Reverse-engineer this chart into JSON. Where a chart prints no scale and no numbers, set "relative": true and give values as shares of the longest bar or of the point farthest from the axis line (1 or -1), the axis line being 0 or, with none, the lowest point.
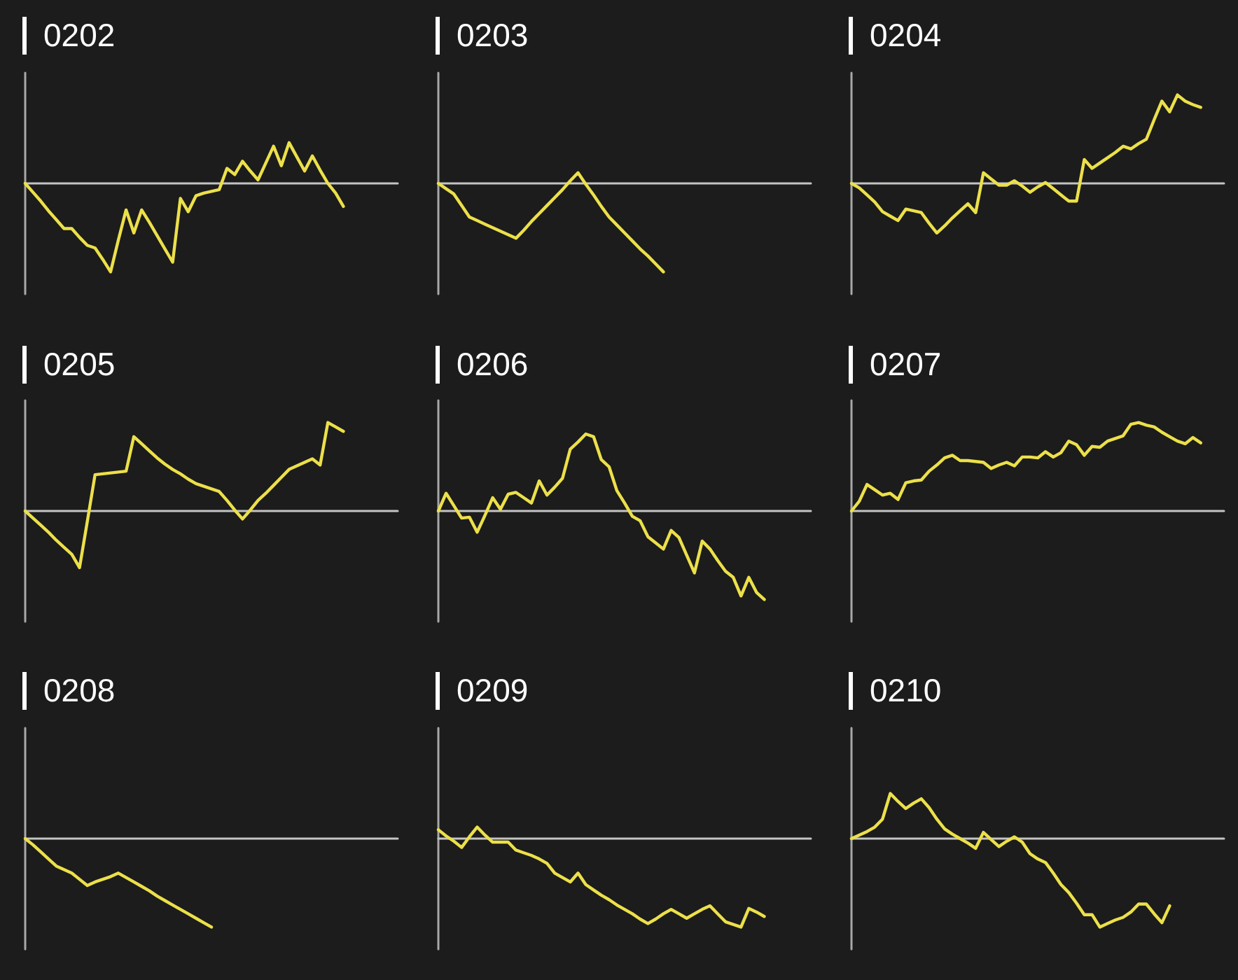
{
  "chart_data": [
    {
      "type": "line",
      "title": "0202",
      "relative": true,
      "marker": "none",
      "line_style": "solid",
      "color": "#ece04a",
      "categories": [
        null,
        null,
        null,
        null,
        null,
        null,
        null,
        null,
        null,
        null,
        null,
        null,
        null,
        null,
        null,
        null,
        null,
        null,
        null,
        null,
        null,
        null,
        null,
        null,
        null,
        null,
        null,
        null,
        null,
        null,
        null,
        null,
        null,
        null,
        null,
        null,
        null,
        null,
        null,
        null,
        null,
        null,
        null,
        null,
        null,
        null,
        null,
        null,
        null
      ],
      "values": [
        0,
        -0.1,
        -0.2,
        -0.31,
        -0.41,
        -0.51,
        -0.51,
        -0.61,
        -0.7,
        -0.73,
        -0.86,
        -1,
        -0.64,
        -0.3,
        -0.56,
        -0.3,
        -0.44,
        -0.59,
        -0.74,
        -0.89,
        -0.17,
        -0.32,
        -0.14,
        -0.11,
        -0.09,
        -0.07,
        0.17,
        0.1,
        0.25,
        0.14,
        0.04,
        0.23,
        0.42,
        0.2,
        0.46,
        0.3,
        0.14,
        0.31,
        0.15,
        0,
        -0.11,
        -0.26,
        null,
        null,
        null,
        null,
        null,
        null,
        null
      ]
    },
    {
      "type": "line",
      "title": "0203",
      "relative": true,
      "marker": "none",
      "line_style": "solid",
      "color": "#ece04a",
      "categories": [
        null,
        null,
        null,
        null,
        null,
        null,
        null,
        null,
        null,
        null,
        null,
        null,
        null,
        null,
        null,
        null,
        null,
        null,
        null,
        null,
        null,
        null,
        null,
        null,
        null,
        null,
        null,
        null,
        null,
        null,
        null,
        null,
        null,
        null,
        null,
        null,
        null,
        null,
        null,
        null,
        null,
        null,
        null,
        null,
        null,
        null,
        null,
        null,
        null
      ],
      "values": [
        0,
        -0.06,
        -0.12,
        -0.25,
        -0.38,
        -0.42,
        -0.46,
        -0.5,
        -0.54,
        -0.58,
        -0.62,
        -0.53,
        -0.43,
        -0.34,
        -0.25,
        -0.16,
        -0.07,
        0.03,
        0.12,
        -0.01,
        -0.13,
        -0.26,
        -0.38,
        -0.47,
        -0.56,
        -0.65,
        -0.74,
        -0.82,
        -0.91,
        -1,
        null,
        null,
        null,
        null,
        null,
        null,
        null,
        null,
        null,
        null,
        null,
        null,
        null,
        null,
        null,
        null,
        null,
        null,
        null
      ]
    },
    {
      "type": "line",
      "title": "0204",
      "relative": true,
      "marker": "none",
      "line_style": "solid",
      "color": "#ece04a",
      "categories": [
        null,
        null,
        null,
        null,
        null,
        null,
        null,
        null,
        null,
        null,
        null,
        null,
        null,
        null,
        null,
        null,
        null,
        null,
        null,
        null,
        null,
        null,
        null,
        null,
        null,
        null,
        null,
        null,
        null,
        null,
        null,
        null,
        null,
        null,
        null,
        null,
        null,
        null,
        null,
        null,
        null,
        null,
        null,
        null,
        null,
        null,
        null,
        null,
        null
      ],
      "values": [
        0,
        -0.05,
        -0.13,
        -0.21,
        -0.32,
        -0.37,
        -0.42,
        -0.29,
        -0.31,
        -0.33,
        -0.45,
        -0.56,
        -0.48,
        -0.39,
        -0.31,
        -0.23,
        -0.33,
        0.12,
        0.05,
        -0.02,
        -0.02,
        0.03,
        -0.03,
        -0.1,
        -0.04,
        0.01,
        -0.06,
        -0.13,
        -0.2,
        -0.2,
        0.27,
        0.17,
        0.23,
        0.29,
        0.35,
        0.42,
        0.39,
        0.45,
        0.5,
        0.72,
        0.93,
        0.81,
        1,
        0.93,
        0.89,
        0.86,
        null,
        null,
        null
      ]
    },
    {
      "type": "line",
      "title": "0205",
      "relative": true,
      "marker": "none",
      "line_style": "solid",
      "color": "#ece04a",
      "categories": [
        null,
        null,
        null,
        null,
        null,
        null,
        null,
        null,
        null,
        null,
        null,
        null,
        null,
        null,
        null,
        null,
        null,
        null,
        null,
        null,
        null,
        null,
        null,
        null,
        null,
        null,
        null,
        null,
        null,
        null,
        null,
        null,
        null,
        null,
        null,
        null,
        null,
        null,
        null,
        null,
        null,
        null,
        null,
        null,
        null,
        null,
        null,
        null,
        null
      ],
      "values": [
        0,
        -0.08,
        -0.16,
        -0.24,
        -0.33,
        -0.41,
        -0.49,
        -0.64,
        -0.12,
        0.41,
        0.42,
        0.43,
        0.44,
        0.45,
        0.84,
        0.76,
        0.68,
        0.6,
        0.53,
        0.47,
        0.42,
        0.36,
        0.31,
        0.28,
        0.25,
        0.22,
        0.12,
        0.01,
        -0.09,
        0.01,
        0.12,
        0.2,
        0.29,
        0.38,
        0.47,
        0.51,
        0.55,
        0.59,
        0.52,
        1,
        0.95,
        0.9,
        null,
        null,
        null,
        null,
        null,
        null,
        null
      ]
    },
    {
      "type": "line",
      "title": "0206",
      "relative": true,
      "marker": "none",
      "line_style": "solid",
      "color": "#ece04a",
      "categories": [
        null,
        null,
        null,
        null,
        null,
        null,
        null,
        null,
        null,
        null,
        null,
        null,
        null,
        null,
        null,
        null,
        null,
        null,
        null,
        null,
        null,
        null,
        null,
        null,
        null,
        null,
        null,
        null,
        null,
        null,
        null,
        null,
        null,
        null,
        null,
        null,
        null,
        null,
        null,
        null,
        null,
        null,
        null,
        null,
        null,
        null,
        null,
        null,
        null
      ],
      "values": [
        0,
        0.2,
        0.06,
        -0.08,
        -0.07,
        -0.24,
        -0.05,
        0.15,
        0.02,
        0.19,
        0.21,
        0.15,
        0.09,
        0.34,
        0.18,
        0.27,
        0.37,
        0.7,
        0.78,
        0.87,
        0.84,
        0.58,
        0.5,
        0.23,
        0.09,
        -0.06,
        -0.11,
        -0.29,
        -0.36,
        -0.43,
        -0.22,
        -0.3,
        -0.5,
        -0.7,
        -0.34,
        -0.43,
        -0.56,
        -0.68,
        -0.75,
        -0.96,
        -0.75,
        -0.92,
        -1,
        null,
        null,
        null,
        null,
        null,
        null
      ]
    },
    {
      "type": "line",
      "title": "0207",
      "relative": true,
      "marker": "none",
      "line_style": "solid",
      "color": "#ece04a",
      "categories": [
        null,
        null,
        null,
        null,
        null,
        null,
        null,
        null,
        null,
        null,
        null,
        null,
        null,
        null,
        null,
        null,
        null,
        null,
        null,
        null,
        null,
        null,
        null,
        null,
        null,
        null,
        null,
        null,
        null,
        null,
        null,
        null,
        null,
        null,
        null,
        null,
        null,
        null,
        null,
        null,
        null,
        null,
        null,
        null,
        null,
        null,
        null,
        null,
        null
      ],
      "values": [
        0,
        0.11,
        0.3,
        0.24,
        0.18,
        0.2,
        0.13,
        0.32,
        0.34,
        0.35,
        0.45,
        0.52,
        0.6,
        0.63,
        0.57,
        0.57,
        0.56,
        0.55,
        0.48,
        0.52,
        0.55,
        0.51,
        0.61,
        0.61,
        0.6,
        0.67,
        0.61,
        0.66,
        0.79,
        0.75,
        0.63,
        0.73,
        0.72,
        0.79,
        0.82,
        0.85,
        0.98,
        1,
        0.97,
        0.95,
        0.89,
        0.84,
        0.79,
        0.76,
        0.83,
        0.77,
        null,
        null,
        null
      ]
    },
    {
      "type": "line",
      "title": "0208",
      "relative": true,
      "marker": "none",
      "line_style": "solid",
      "color": "#ece04a",
      "categories": [
        null,
        null,
        null,
        null,
        null,
        null,
        null,
        null,
        null,
        null,
        null,
        null,
        null,
        null,
        null,
        null,
        null,
        null,
        null,
        null,
        null,
        null,
        null,
        null,
        null,
        null,
        null,
        null,
        null,
        null,
        null,
        null,
        null,
        null,
        null,
        null,
        null,
        null,
        null,
        null,
        null,
        null,
        null,
        null,
        null,
        null,
        null,
        null,
        null
      ],
      "values": [
        0,
        -0.07,
        -0.15,
        -0.23,
        -0.31,
        -0.35,
        -0.39,
        -0.46,
        -0.53,
        -0.49,
        -0.46,
        -0.43,
        -0.39,
        -0.44,
        -0.49,
        -0.54,
        -0.59,
        -0.65,
        -0.7,
        -0.75,
        -0.8,
        -0.85,
        -0.9,
        -0.95,
        -1,
        null,
        null,
        null,
        null,
        null,
        null,
        null,
        null,
        null,
        null,
        null,
        null,
        null,
        null,
        null,
        null,
        null,
        null,
        null,
        null,
        null,
        null,
        null,
        null
      ]
    },
    {
      "type": "line",
      "title": "0209",
      "relative": true,
      "marker": "none",
      "line_style": "solid",
      "color": "#ece04a",
      "categories": [
        null,
        null,
        null,
        null,
        null,
        null,
        null,
        null,
        null,
        null,
        null,
        null,
        null,
        null,
        null,
        null,
        null,
        null,
        null,
        null,
        null,
        null,
        null,
        null,
        null,
        null,
        null,
        null,
        null,
        null,
        null,
        null,
        null,
        null,
        null,
        null,
        null,
        null,
        null,
        null,
        null,
        null,
        null,
        null,
        null,
        null,
        null,
        null,
        null
      ],
      "values": [
        0.1,
        0.03,
        -0.03,
        -0.1,
        0.02,
        0.13,
        0.04,
        -0.04,
        -0.04,
        -0.04,
        -0.13,
        -0.16,
        -0.19,
        -0.23,
        -0.28,
        -0.39,
        -0.44,
        -0.49,
        -0.39,
        -0.52,
        -0.58,
        -0.64,
        -0.69,
        -0.75,
        -0.8,
        -0.85,
        -0.91,
        -0.96,
        -0.91,
        -0.85,
        -0.8,
        -0.85,
        -0.9,
        -0.85,
        -0.8,
        -0.76,
        -0.85,
        -0.94,
        -0.97,
        -1,
        -0.79,
        -0.83,
        -0.88,
        null,
        null,
        null,
        null,
        null,
        null
      ]
    },
    {
      "type": "line",
      "title": "0210",
      "relative": true,
      "marker": "none",
      "line_style": "solid",
      "color": "#ece04a",
      "categories": [
        null,
        null,
        null,
        null,
        null,
        null,
        null,
        null,
        null,
        null,
        null,
        null,
        null,
        null,
        null,
        null,
        null,
        null,
        null,
        null,
        null,
        null,
        null,
        null,
        null,
        null,
        null,
        null,
        null,
        null,
        null,
        null,
        null,
        null,
        null,
        null,
        null,
        null,
        null,
        null,
        null,
        null,
        null,
        null,
        null,
        null,
        null,
        null,
        null
      ],
      "values": [
        0,
        0.04,
        0.08,
        0.13,
        0.22,
        0.51,
        0.42,
        0.34,
        0.4,
        0.45,
        0.35,
        0.22,
        0.11,
        0.05,
        0,
        -0.05,
        -0.11,
        0.07,
        -0.01,
        -0.09,
        -0.03,
        0.02,
        -0.04,
        -0.17,
        -0.23,
        -0.27,
        -0.39,
        -0.52,
        -0.61,
        -0.73,
        -0.86,
        -0.86,
        -1,
        -0.96,
        -0.92,
        -0.89,
        -0.83,
        -0.74,
        -0.74,
        -0.85,
        -0.95,
        -0.76,
        null,
        null,
        null,
        null,
        null,
        null,
        null
      ]
    }
  ]
}
